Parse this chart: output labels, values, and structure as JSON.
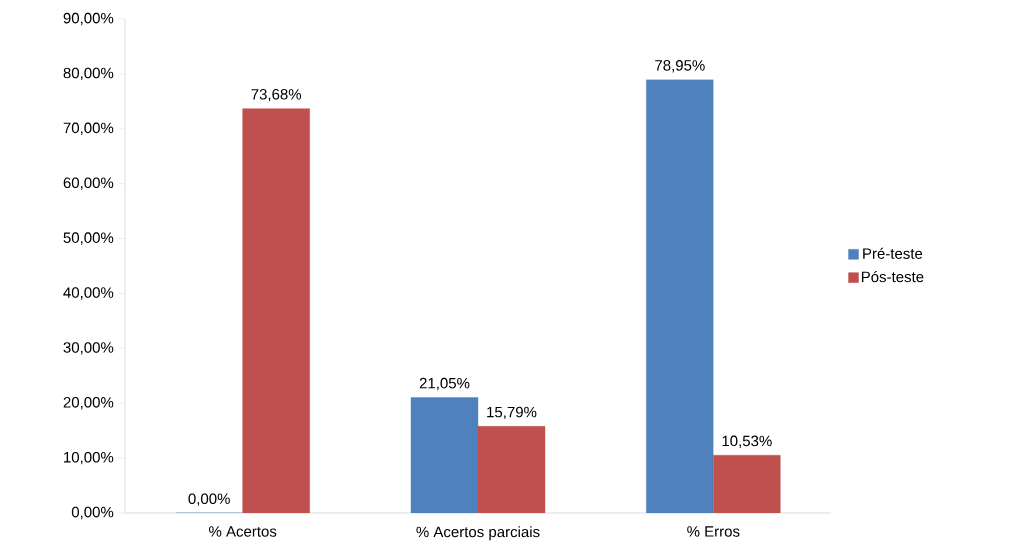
{
  "chart_data": {
    "type": "bar",
    "categories": [
      "% Acertos",
      "% Acertos parciais",
      "% Erros"
    ],
    "series": [
      {
        "name": "Pré-teste",
        "color": "#4f81bd",
        "values": [
          0,
          21.05,
          78.95
        ],
        "value_labels": [
          "0,00%",
          "21,05%",
          "78,95%"
        ]
      },
      {
        "name": "Pós-teste",
        "color": "#c0504d",
        "values": [
          73.68,
          15.79,
          10.53
        ],
        "value_labels": [
          "73,68%",
          "15,79%",
          "10,53%"
        ]
      }
    ],
    "ylim": [
      0,
      90
    ],
    "yticks": [
      {
        "value": 0,
        "label": "0,00%"
      },
      {
        "value": 10,
        "label": "10,00%"
      },
      {
        "value": 20,
        "label": "20,00%"
      },
      {
        "value": 30,
        "label": "30,00%"
      },
      {
        "value": 40,
        "label": "40,00%"
      },
      {
        "value": 50,
        "label": "50,00%"
      },
      {
        "value": 60,
        "label": "60,00%"
      },
      {
        "value": 70,
        "label": "70,00%"
      },
      {
        "value": 80,
        "label": "80,00%"
      },
      {
        "value": 90,
        "label": "90,00%"
      }
    ],
    "grid": false,
    "legend": "right"
  }
}
